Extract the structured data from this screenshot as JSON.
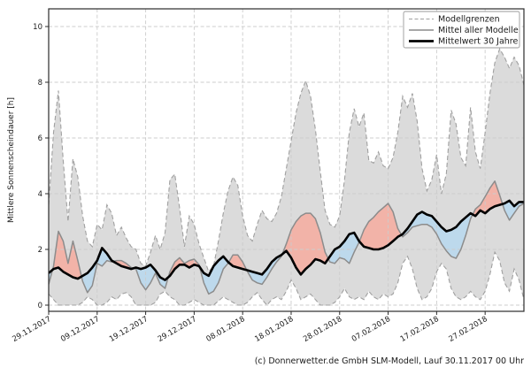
{
  "chart": {
    "caption": "(c) Donnerwetter.de GmbH SLM-Modell, Lauf 30.11.2017 00 Uhr",
    "legend": [
      {
        "label": "Modellgrenzen",
        "style": "dashed-gray"
      },
      {
        "label": "Mittel aller Modelle",
        "style": "solid-gray"
      },
      {
        "label": "Mittelwert 30 Jahre",
        "style": "solid-black-thick"
      }
    ]
  },
  "colors": {
    "band": "#dbdbdb",
    "band_edge": "#a0a0a0",
    "grid": "#cccccc",
    "model_mean": "#8c8c8c",
    "mean30": "#000000",
    "above_normal": "#f2b3a8",
    "below_normal": "#bdd9ec",
    "spine": "#2b2b2b"
  },
  "chart_data": {
    "type": "line",
    "title": "",
    "xlabel": "",
    "ylabel": "Mittlere Sonnenscheindauer [h]",
    "x_unit": "days since 29.11.2017",
    "n_days": 99,
    "xlim_days": [
      0,
      98
    ],
    "ylim": [
      -0.22,
      10.63
    ],
    "y_ticks": [
      0,
      2,
      4,
      6,
      8,
      10
    ],
    "x_tick_days": [
      0,
      10,
      20,
      30,
      40,
      50,
      60,
      70,
      80,
      90
    ],
    "x_tick_labels": [
      "29.11.2017",
      "09.12.2017",
      "19.12.2017",
      "29.12.2017",
      "08.01.2018",
      "18.01.2018",
      "28.01.2018",
      "07.02.2018",
      "17.02.2018",
      "27.02.2018"
    ],
    "grid": true,
    "legend_position": "upper right",
    "series": [
      {
        "name": "Modellgrenzen (oberer Rand)",
        "role": "band_max",
        "values": [
          3.6,
          6.2,
          7.7,
          5.2,
          3.0,
          5.25,
          4.6,
          3.2,
          2.3,
          2.1,
          2.9,
          2.7,
          3.6,
          3.3,
          2.5,
          2.8,
          2.4,
          2.1,
          2.0,
          1.5,
          1.4,
          1.9,
          2.5,
          2.0,
          2.6,
          4.5,
          4.7,
          3.5,
          2.1,
          3.2,
          2.9,
          2.2,
          1.7,
          1.2,
          1.4,
          2.3,
          3.3,
          4.1,
          4.6,
          4.3,
          3.2,
          2.5,
          2.3,
          2.9,
          3.4,
          3.1,
          3.0,
          3.3,
          3.9,
          4.9,
          5.9,
          6.9,
          7.6,
          8.05,
          7.5,
          6.3,
          4.8,
          3.4,
          2.9,
          2.8,
          3.2,
          4.5,
          6.2,
          7.05,
          6.4,
          6.9,
          5.2,
          5.1,
          5.5,
          5.0,
          4.9,
          5.3,
          6.2,
          7.5,
          7.1,
          7.6,
          6.6,
          4.9,
          4.1,
          4.5,
          5.4,
          4.0,
          4.7,
          7.0,
          6.5,
          5.3,
          5.0,
          7.1,
          5.5,
          4.9,
          6.2,
          7.6,
          8.7,
          9.2,
          8.9,
          8.5,
          8.9,
          8.6,
          7.9
        ]
      },
      {
        "name": "Modellgrenzen (unterer Rand)",
        "role": "band_min",
        "values": [
          0.4,
          0.2,
          0,
          0,
          0,
          0,
          0,
          0.1,
          0.3,
          0.2,
          0,
          0,
          0.1,
          0.3,
          0.2,
          0.4,
          0.45,
          0.3,
          0,
          0,
          0,
          0,
          0.1,
          0.4,
          0.5,
          0.3,
          0.2,
          0,
          0,
          0.1,
          0.2,
          0.1,
          0,
          0,
          0,
          0.15,
          0.3,
          0.2,
          0.1,
          0,
          0,
          0.1,
          0.3,
          0.45,
          0.2,
          0,
          0.2,
          0.3,
          0.2,
          0.5,
          0.9,
          0.6,
          0.2,
          0.3,
          0.4,
          0.2,
          0,
          0,
          0,
          0.1,
          0.3,
          0.6,
          0.3,
          0.2,
          0.3,
          0.2,
          0.5,
          0.3,
          0.2,
          0.4,
          0.3,
          0.4,
          0.8,
          1.5,
          1.75,
          1.3,
          0.6,
          0.2,
          0.3,
          0.6,
          1.2,
          1.5,
          1.3,
          0.6,
          0.3,
          0.2,
          0.3,
          0.5,
          0.3,
          0.2,
          0.5,
          1.1,
          1.9,
          1.6,
          0.8,
          0.5,
          1.3,
          0.9,
          0.2
        ]
      },
      {
        "name": "Mittel aller Modelle",
        "role": "model_mean",
        "values": [
          0.75,
          1.4,
          2.65,
          2.3,
          1.5,
          2.3,
          1.6,
          0.85,
          0.45,
          0.7,
          1.5,
          1.4,
          1.6,
          1.55,
          1.6,
          1.6,
          1.5,
          1.35,
          1.3,
          0.8,
          0.55,
          0.8,
          1.15,
          0.75,
          0.6,
          1.2,
          1.55,
          1.7,
          1.5,
          1.6,
          1.65,
          1.45,
          0.8,
          0.4,
          0.5,
          0.8,
          1.3,
          1.5,
          1.8,
          1.8,
          1.55,
          1.2,
          0.9,
          0.8,
          0.75,
          1.0,
          1.3,
          1.55,
          1.75,
          2.2,
          2.7,
          3.0,
          3.2,
          3.3,
          3.3,
          3.1,
          2.6,
          1.9,
          1.55,
          1.5,
          1.7,
          1.65,
          1.5,
          1.9,
          2.25,
          2.7,
          3.0,
          3.15,
          3.35,
          3.5,
          3.65,
          3.35,
          2.75,
          2.45,
          2.6,
          2.8,
          2.85,
          2.9,
          2.9,
          2.8,
          2.55,
          2.2,
          1.95,
          1.75,
          1.68,
          2.0,
          2.5,
          3.1,
          3.45,
          3.6,
          3.9,
          4.2,
          4.45,
          3.95,
          3.4,
          3.05,
          3.3,
          3.55,
          3.65
        ]
      },
      {
        "name": "Mittelwert 30 Jahre",
        "role": "mean_30y",
        "values": [
          1.15,
          1.3,
          1.35,
          1.2,
          1.1,
          1.0,
          0.95,
          1.05,
          1.15,
          1.35,
          1.6,
          2.05,
          1.85,
          1.6,
          1.5,
          1.4,
          1.35,
          1.3,
          1.35,
          1.3,
          1.35,
          1.45,
          1.25,
          1.0,
          0.9,
          1.05,
          1.3,
          1.45,
          1.45,
          1.35,
          1.45,
          1.4,
          1.15,
          1.05,
          1.4,
          1.6,
          1.75,
          1.55,
          1.4,
          1.35,
          1.3,
          1.25,
          1.2,
          1.15,
          1.1,
          1.3,
          1.55,
          1.7,
          1.8,
          1.95,
          1.7,
          1.35,
          1.1,
          1.3,
          1.45,
          1.65,
          1.6,
          1.5,
          1.75,
          2.0,
          2.1,
          2.3,
          2.55,
          2.6,
          2.3,
          2.1,
          2.05,
          2.0,
          2.0,
          2.05,
          2.15,
          2.3,
          2.45,
          2.55,
          2.75,
          3.0,
          3.25,
          3.35,
          3.25,
          3.2,
          3.0,
          2.8,
          2.65,
          2.7,
          2.8,
          3.0,
          3.15,
          3.3,
          3.2,
          3.4,
          3.3,
          3.45,
          3.55,
          3.6,
          3.65,
          3.75,
          3.55,
          3.7,
          3.7
        ]
      }
    ]
  }
}
